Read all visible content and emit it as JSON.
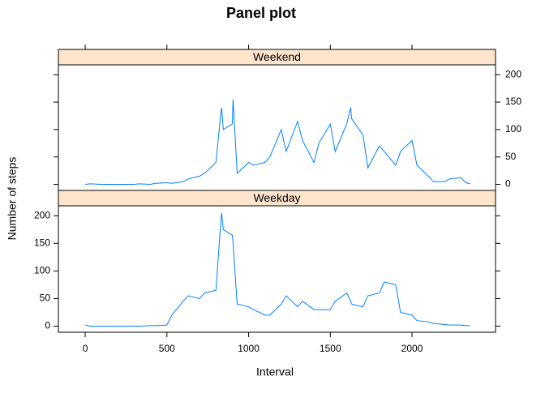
{
  "chart_data": {
    "type": "line",
    "title": "Panel plot",
    "xlabel": "Interval",
    "ylabel": "Number of steps",
    "color": "#0080ff",
    "strip_color": "#ffe5cc",
    "x": [
      0,
      30,
      100,
      130,
      200,
      230,
      300,
      330,
      400,
      430,
      500,
      530,
      600,
      630,
      700,
      730,
      800,
      830,
      835,
      845,
      900,
      905,
      930,
      1000,
      1030,
      1100,
      1130,
      1200,
      1230,
      1300,
      1330,
      1400,
      1430,
      1500,
      1530,
      1600,
      1625,
      1630,
      1700,
      1730,
      1800,
      1830,
      1900,
      1930,
      2000,
      2030,
      2100,
      2130,
      2200,
      2230,
      2300,
      2330,
      2355
    ],
    "series": [
      {
        "name": "Weekend",
        "values": [
          0,
          1,
          0,
          0,
          0,
          0,
          0,
          1,
          0,
          2,
          3,
          2,
          5,
          10,
          15,
          20,
          40,
          130,
          140,
          100,
          110,
          155,
          20,
          40,
          35,
          40,
          50,
          100,
          60,
          115,
          80,
          40,
          75,
          110,
          60,
          110,
          140,
          120,
          90,
          30,
          70,
          60,
          35,
          60,
          80,
          35,
          15,
          5,
          5,
          10,
          12,
          3,
          1
        ]
      },
      {
        "name": "Weekday",
        "values": [
          2,
          0,
          0,
          0,
          0,
          0,
          0,
          0,
          1,
          1,
          2,
          20,
          45,
          55,
          50,
          60,
          65,
          190,
          205,
          175,
          165,
          150,
          40,
          35,
          30,
          20,
          20,
          40,
          55,
          35,
          45,
          30,
          30,
          30,
          45,
          60,
          45,
          40,
          35,
          55,
          60,
          80,
          75,
          25,
          20,
          10,
          8,
          5,
          3,
          2,
          2,
          1,
          1
        ]
      }
    ],
    "xlim": [
      -164,
      2511
    ],
    "ylim": [
      -11,
      218
    ],
    "xticks": [
      0,
      500,
      1000,
      1500,
      2000
    ],
    "yticks": [
      0,
      50,
      100,
      150,
      200
    ]
  }
}
